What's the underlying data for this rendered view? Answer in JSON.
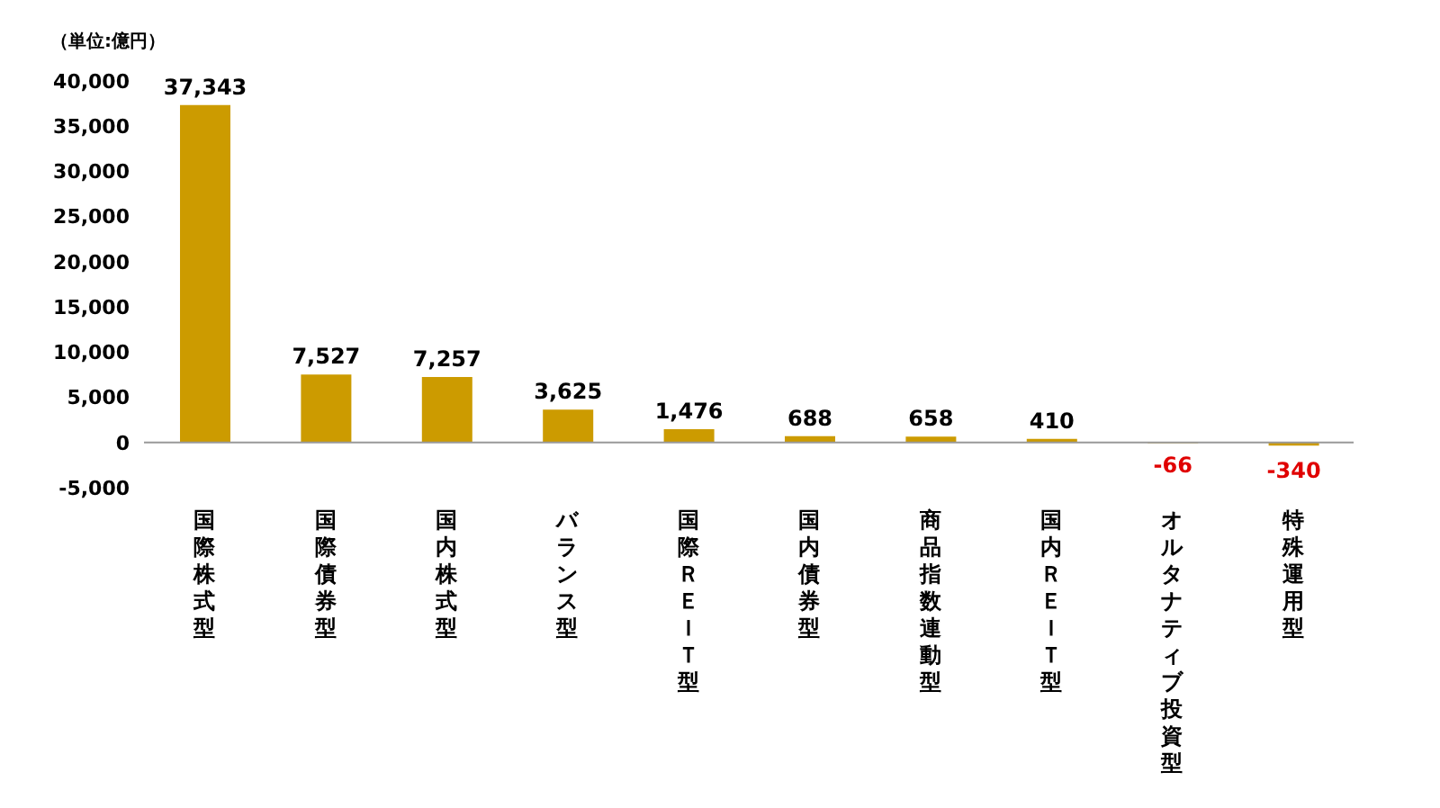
{
  "chart_data": {
    "type": "bar",
    "ylabel": "（単位:億円）",
    "categories": [
      "国際株式型",
      "国際債券型",
      "国内株式型",
      "バランス型",
      "国際ＲＥＩＴ型",
      "国内債券型",
      "商品指数連動型",
      "国内ＲＥＩＴ型",
      "オルタナティブ投資型",
      "特殊運用型"
    ],
    "values": [
      37343,
      7527,
      7257,
      3625,
      1476,
      688,
      658,
      410,
      -66,
      -340
    ],
    "value_labels": [
      "37,343",
      "7,527",
      "7,257",
      "3,625",
      "1,476",
      "688",
      "658",
      "410",
      "-66",
      "-340"
    ],
    "color": "#cc9b00",
    "ylim": [
      -5000,
      40000
    ],
    "yticks": [
      {
        "value": -5000,
        "label": "-5,000"
      },
      {
        "value": 0,
        "label": "0"
      },
      {
        "value": 5000,
        "label": "5,000"
      },
      {
        "value": 10000,
        "label": "10,000"
      },
      {
        "value": 15000,
        "label": "15,000"
      },
      {
        "value": 20000,
        "label": "20,000"
      },
      {
        "value": 25000,
        "label": "25,000"
      },
      {
        "value": 30000,
        "label": "30,000"
      },
      {
        "value": 35000,
        "label": "35,000"
      },
      {
        "value": 40000,
        "label": "40,000"
      }
    ],
    "legend": false
  }
}
